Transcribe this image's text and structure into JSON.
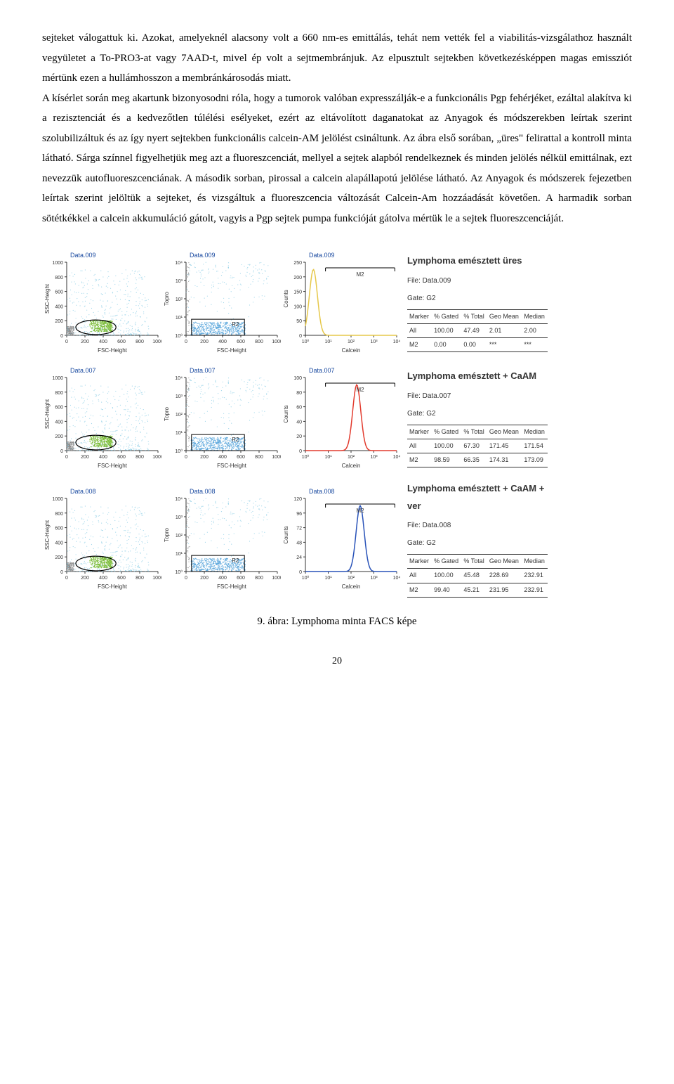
{
  "paragraph": "sejteket válogattuk ki. Azokat, amelyeknél alacsony volt a 660 nm-es emittálás, tehát nem vették fel a viabilitás-vizsgálathoz használt vegyületet a To-PRO3-at vagy 7AAD-t, mivel ép volt a sejtmembránjuk. Az elpusztult sejtekben következésképpen magas emissziót mértünk ezen a hullámhosszon a membránkárosodás miatt.\nA kísérlet során meg akartunk bizonyosodni róla, hogy a tumorok valóban expresszálják-e a funkcionális Pgp fehérjéket, ezáltal alakítva ki a rezisztenciát és a kedvezőtlen túlélési esélyeket, ezért az eltávolított daganatokat az Anyagok és módszerekben leírtak szerint szolubilizáltuk és az így nyert sejtekben funkcionális calcein-AM jelölést csináltunk. Az ábra első sorában, „üres\" felirattal a kontroll minta látható. Sárga színnel figyelhetjük meg azt a fluoreszcenciát, mellyel a sejtek alapból rendelkeznek és minden jelölés nélkül emittálnak, ezt nevezzük autofluoreszcenciának. A második sorban, pirossal a calcein alapállapotú jelölése látható. Az Anyagok és módszerek fejezetben leírtak szerint jelöltük a sejteket, és vizsgáltuk a fluoreszcencia változását Calcein-Am hozzáadását követően. A harmadik sorban sötétkékkel a calcein akkumuláció gátolt, vagyis a Pgp sejtek pumpa funkcióját gátolva mértük le a sejtek fluoreszcenciáját.",
  "figure_caption": "9. ábra: Lymphoma minta FACS képe",
  "page_number": "20",
  "plots": {
    "colors": {
      "scatter_cyan": "#7ec8e3",
      "scatter_grey": "#888888",
      "scatter_green": "#7fbf3f",
      "scatter_blue_fill": "#5ea9dd",
      "hist_yellow": "#e6c84a",
      "hist_red": "#e23b2e",
      "hist_blue": "#2852b8",
      "axis": "#333333",
      "title_blue": "#1a4aa0"
    },
    "panel_titles": [
      "Data.009",
      "Data.009",
      "Data.009",
      "Data.007",
      "Data.007",
      "Data.007",
      "Data.008",
      "Data.008",
      "Data.008"
    ],
    "axis_labels": {
      "fsc": "FSC-Height",
      "ssc": "SSC-Height",
      "topro": "Topro",
      "counts": "Counts",
      "calcein": "Calcein"
    },
    "scatter_ticks": [
      "0",
      "200",
      "400",
      "600",
      "800",
      "1000"
    ],
    "log_ticks": [
      "10⁰",
      "10¹",
      "10²",
      "10³",
      "10⁴"
    ],
    "hist_ymax": [
      250,
      100,
      120
    ],
    "gate_labels": {
      "gate": "R2",
      "marker": "M2"
    },
    "legends": [
      {
        "title": "Lymphoma emésztett üres",
        "file": "File: Data.009",
        "gate": "Gate: G2",
        "rows": [
          [
            "All",
            "100.00",
            "47.49",
            "2.01",
            "2.00"
          ],
          [
            "M2",
            "0.00",
            "0.00",
            "***",
            "***"
          ]
        ]
      },
      {
        "title": "Lymphoma emésztett + CaAM",
        "file": "File: Data.007",
        "gate": "Gate: G2",
        "rows": [
          [
            "All",
            "100.00",
            "67.30",
            "171.45",
            "171.54"
          ],
          [
            "M2",
            "98.59",
            "66.35",
            "174.31",
            "173.09"
          ]
        ]
      },
      {
        "title": "Lymphoma emésztett + CaAM + ver",
        "file": "File: Data.008",
        "gate": "Gate: G2",
        "rows": [
          [
            "All",
            "100.00",
            "45.48",
            "228.69",
            "232.91"
          ],
          [
            "M2",
            "99.40",
            "45.21",
            "231.95",
            "232.91"
          ]
        ]
      }
    ],
    "legend_headers": [
      "Marker",
      "% Gated",
      "% Total",
      "Geo Mean",
      "Median"
    ]
  }
}
